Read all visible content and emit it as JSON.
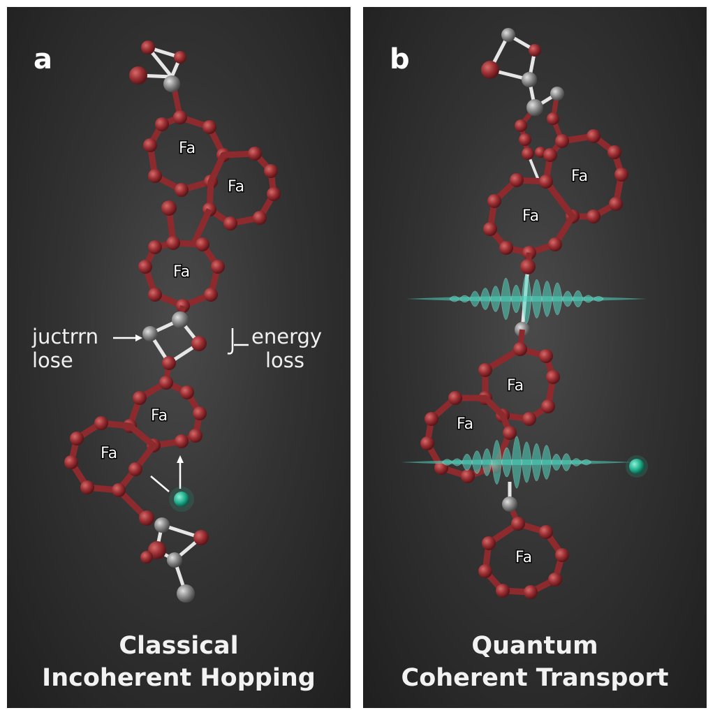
{
  "panel_a": {
    "letter": "a",
    "caption_line1": "Classical",
    "caption_line2": "Incoherent Hopping",
    "left_label_line1": "juctrrn",
    "left_label_line2": "lose",
    "right_symbol": "J",
    "right_label_line1": "energy",
    "right_label_line2": "loss",
    "ring_labels": [
      "Fa",
      "Fa",
      "Fa",
      "Fa",
      "Fa"
    ]
  },
  "panel_b": {
    "letter": "b",
    "caption_line1": "Quantum",
    "caption_line2": "Coherent Transport",
    "ring_labels": [
      "Fa",
      "Fa",
      "Fa",
      "Fa",
      "Fa"
    ]
  },
  "colors": {
    "bond": "#8c2a2e",
    "atom_red": "#9a2f33",
    "atom_gray": "#8a8a8a",
    "electron": "#1fae8c",
    "wave": "#4fd6c0"
  }
}
